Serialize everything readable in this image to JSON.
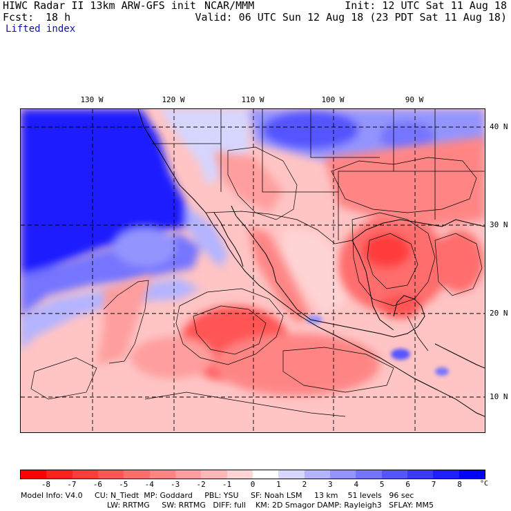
{
  "header": {
    "title": "HIWC Radar II 13km ARW-GFS init",
    "agency": "NCAR/MMM",
    "init": "Init: 12 UTC Sat 11 Aug 18",
    "fcst_label": "Fcst:",
    "fcst_value": "18 h",
    "valid": "Valid: 06 UTC Sun 12 Aug 18 (23 PDT Sat 11 Aug 18)",
    "field": "Lifted index"
  },
  "map": {
    "lon_labels": [
      "130 W",
      "120 W",
      "110 W",
      "100 W",
      "90 W"
    ],
    "lat_labels": [
      "40 N",
      "30 N",
      "20 N",
      "10 N"
    ]
  },
  "colorbar": {
    "ticks": [
      "-8",
      "-7",
      "-6",
      "-5",
      "-4",
      "-3",
      "-2",
      "-1",
      "0",
      "1",
      "2",
      "3",
      "4",
      "5",
      "6",
      "7",
      "8"
    ],
    "unit": "°C",
    "colors": [
      "#ff0000",
      "#ff2020",
      "#ff3c3c",
      "#ff5555",
      "#ff6d6d",
      "#ff8585",
      "#ff9e9e",
      "#ffb8b8",
      "#ffd4d4",
      "#ffffff",
      "#d6d6ff",
      "#b4b4ff",
      "#9494ff",
      "#7474ff",
      "#5555ff",
      "#3a3aff",
      "#1e1eff",
      "#0000ff"
    ]
  },
  "footer": {
    "line1": "Model Info: V4.0     CU: N_Tiedt  MP: Goddard     PBL: YSU     SF: Noah LSM     13 km    51 levels   96 sec",
    "line2": "LW: RRTMG     SW: RRTMG   DIFF: full    KM: 2D Smagor DAMP: Rayleigh3   SFLAY: MM5"
  }
}
